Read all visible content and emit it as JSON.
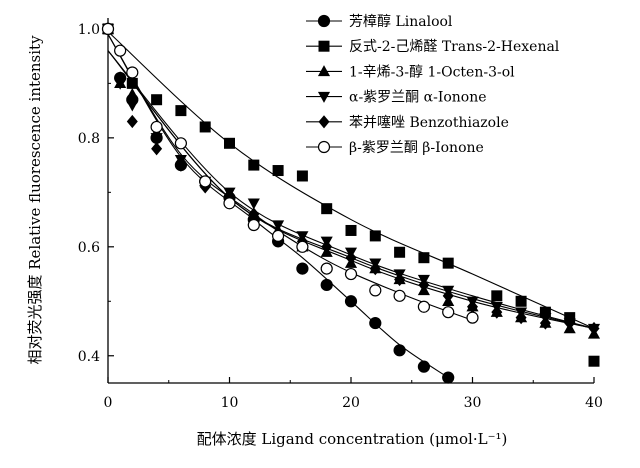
{
  "chart_data": {
    "type": "scatter",
    "xlabel": "配体浓度 Ligand concentration (μmol·L⁻¹)",
    "ylabel": "相对荧光强度 Relative fluorescence intensity",
    "xlim": [
      0,
      40
    ],
    "ylim": [
      0.35,
      1.02
    ],
    "xticks": [
      "0",
      "10",
      "20",
      "30",
      "40"
    ],
    "xtick_values": [
      0,
      10,
      20,
      30,
      40
    ],
    "yticks": [
      "0.4",
      "0.6",
      "0.8",
      "1.0"
    ],
    "ytick_values": [
      0.4,
      0.6,
      0.8,
      1.0
    ],
    "grid": false,
    "legend_position": "top-right",
    "series": [
      {
        "name": "芳樟醇 Linalool",
        "marker": "circle-filled",
        "points": [
          [
            0,
            1.0
          ],
          [
            1,
            0.91
          ],
          [
            2,
            0.87
          ],
          [
            4,
            0.8
          ],
          [
            6,
            0.75
          ],
          [
            8,
            0.72
          ],
          [
            10,
            0.69
          ],
          [
            12,
            0.65
          ],
          [
            14,
            0.61
          ],
          [
            16,
            0.56
          ],
          [
            18,
            0.53
          ],
          [
            20,
            0.5
          ],
          [
            22,
            0.46
          ],
          [
            24,
            0.41
          ],
          [
            26,
            0.38
          ],
          [
            28,
            0.36
          ]
        ],
        "fit": [
          [
            0,
            0.99
          ],
          [
            6,
            0.765
          ],
          [
            12,
            0.65
          ],
          [
            16,
            0.58
          ],
          [
            20,
            0.5
          ],
          [
            24,
            0.42
          ],
          [
            28,
            0.36
          ]
        ]
      },
      {
        "name": "反式-2-己烯醛 Trans-2-Hexenal",
        "marker": "square-filled",
        "points": [
          [
            0,
            1.0
          ],
          [
            2,
            0.9
          ],
          [
            4,
            0.87
          ],
          [
            6,
            0.85
          ],
          [
            8,
            0.82
          ],
          [
            10,
            0.79
          ],
          [
            12,
            0.75
          ],
          [
            14,
            0.74
          ],
          [
            16,
            0.73
          ],
          [
            18,
            0.67
          ],
          [
            20,
            0.63
          ],
          [
            22,
            0.62
          ],
          [
            24,
            0.59
          ],
          [
            26,
            0.58
          ],
          [
            28,
            0.57
          ],
          [
            32,
            0.51
          ],
          [
            34,
            0.5
          ],
          [
            36,
            0.48
          ],
          [
            38,
            0.47
          ],
          [
            40,
            0.39
          ]
        ],
        "fit": [
          [
            0,
            0.995
          ],
          [
            10,
            0.79
          ],
          [
            20,
            0.65
          ],
          [
            30,
            0.55
          ],
          [
            40,
            0.45
          ]
        ]
      },
      {
        "name": "1-辛烯-3-醇 1-Octen-3-ol",
        "marker": "triangle-up-filled",
        "points": [
          [
            0,
            1.0
          ],
          [
            1,
            0.9
          ],
          [
            2,
            0.88
          ],
          [
            4,
            0.81
          ],
          [
            6,
            0.76
          ],
          [
            8,
            0.72
          ],
          [
            10,
            0.69
          ],
          [
            12,
            0.66
          ],
          [
            14,
            0.63
          ],
          [
            16,
            0.6
          ],
          [
            18,
            0.59
          ],
          [
            20,
            0.57
          ],
          [
            22,
            0.56
          ],
          [
            24,
            0.54
          ],
          [
            26,
            0.52
          ],
          [
            28,
            0.5
          ],
          [
            30,
            0.49
          ],
          [
            32,
            0.48
          ],
          [
            34,
            0.47
          ],
          [
            36,
            0.46
          ],
          [
            38,
            0.45
          ],
          [
            40,
            0.44
          ]
        ],
        "fit": [
          [
            0,
            0.96
          ],
          [
            10,
            0.69
          ],
          [
            20,
            0.58
          ],
          [
            30,
            0.505
          ],
          [
            40,
            0.45
          ]
        ]
      },
      {
        "name": "α-紫罗兰酮 α-Ionone",
        "marker": "triangle-down-filled",
        "points": [
          [
            0,
            1.0
          ],
          [
            1,
            0.9
          ],
          [
            2,
            0.86
          ],
          [
            4,
            0.8
          ],
          [
            6,
            0.76
          ],
          [
            8,
            0.72
          ],
          [
            10,
            0.7
          ],
          [
            12,
            0.68
          ],
          [
            14,
            0.64
          ],
          [
            16,
            0.62
          ],
          [
            18,
            0.61
          ],
          [
            20,
            0.59
          ],
          [
            22,
            0.57
          ],
          [
            24,
            0.55
          ],
          [
            26,
            0.54
          ],
          [
            28,
            0.52
          ],
          [
            30,
            0.5
          ],
          [
            32,
            0.49
          ],
          [
            34,
            0.48
          ],
          [
            36,
            0.47
          ],
          [
            38,
            0.46
          ],
          [
            40,
            0.45
          ]
        ],
        "fit": [
          [
            0,
            0.96
          ],
          [
            10,
            0.7
          ],
          [
            20,
            0.585
          ],
          [
            30,
            0.51
          ],
          [
            40,
            0.45
          ]
        ]
      },
      {
        "name": "苯并噻唑 Benzothiazole",
        "marker": "diamond-filled",
        "points": [
          [
            0,
            1.0
          ],
          [
            1,
            0.91
          ],
          [
            2,
            0.83
          ],
          [
            4,
            0.78
          ],
          [
            6,
            0.75
          ],
          [
            8,
            0.71
          ],
          [
            10,
            0.69
          ],
          [
            12,
            0.66
          ],
          [
            14,
            0.62
          ],
          [
            16,
            0.61
          ],
          [
            18,
            0.6
          ],
          [
            20,
            0.58
          ],
          [
            22,
            0.56
          ],
          [
            24,
            0.54
          ],
          [
            26,
            0.53
          ],
          [
            28,
            0.51
          ],
          [
            30,
            0.49
          ],
          [
            32,
            0.48
          ],
          [
            34,
            0.47
          ],
          [
            36,
            0.46
          ],
          [
            38,
            0.46
          ],
          [
            40,
            0.45
          ]
        ],
        "fit": [
          [
            0,
            0.96
          ],
          [
            10,
            0.69
          ],
          [
            20,
            0.575
          ],
          [
            30,
            0.5
          ],
          [
            40,
            0.45
          ]
        ]
      },
      {
        "name": "β-紫罗兰酮 β-Ionone",
        "marker": "circle-open",
        "points": [
          [
            0,
            1.0
          ],
          [
            1,
            0.96
          ],
          [
            2,
            0.92
          ],
          [
            4,
            0.82
          ],
          [
            6,
            0.79
          ],
          [
            8,
            0.72
          ],
          [
            10,
            0.68
          ],
          [
            12,
            0.64
          ],
          [
            14,
            0.62
          ],
          [
            16,
            0.6
          ],
          [
            18,
            0.56
          ],
          [
            20,
            0.55
          ],
          [
            22,
            0.52
          ],
          [
            24,
            0.51
          ],
          [
            26,
            0.49
          ],
          [
            28,
            0.48
          ],
          [
            30,
            0.47
          ]
        ],
        "fit": [
          [
            0,
            0.99
          ],
          [
            6,
            0.77
          ],
          [
            12,
            0.66
          ],
          [
            18,
            0.575
          ],
          [
            24,
            0.515
          ],
          [
            30,
            0.465
          ]
        ]
      }
    ]
  }
}
